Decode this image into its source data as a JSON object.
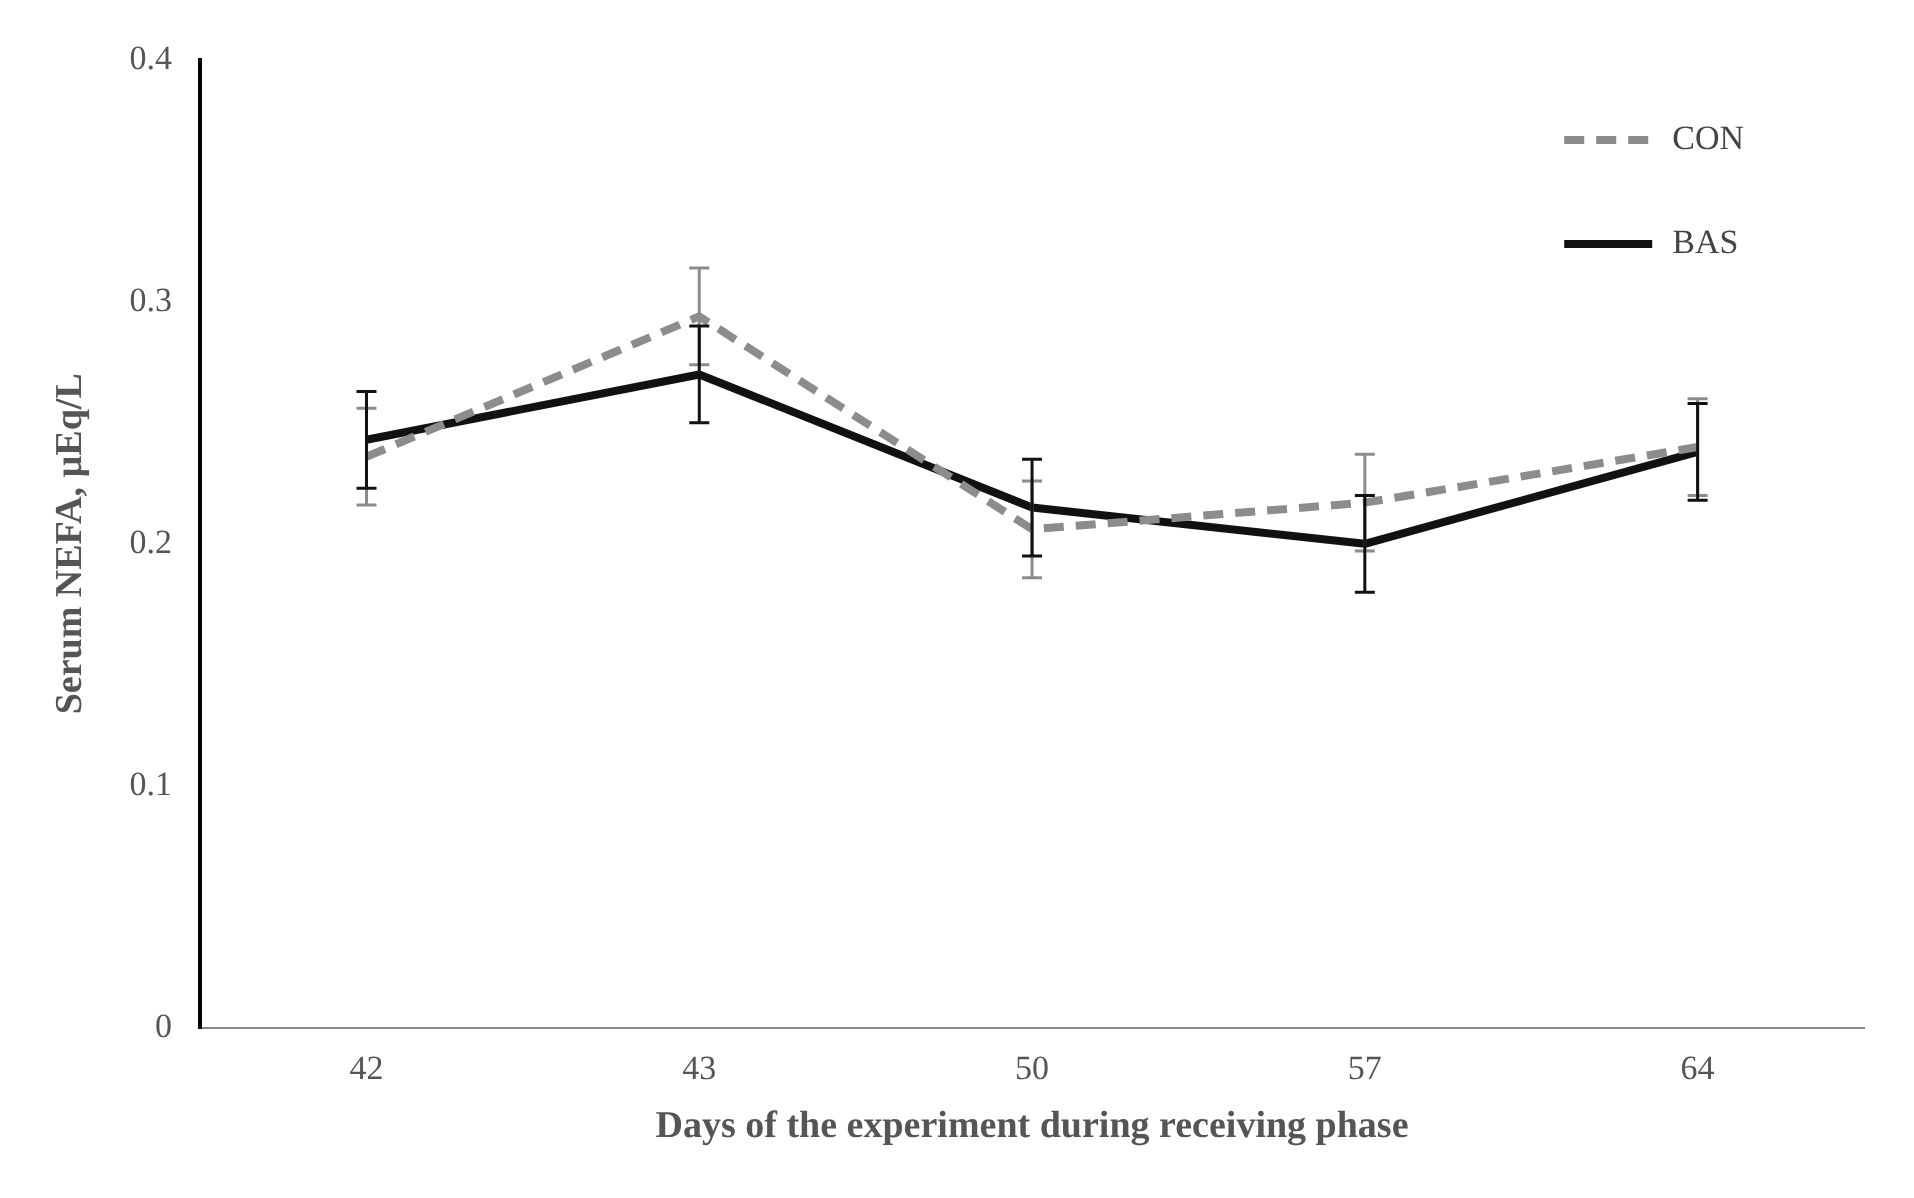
{
  "chart_data": {
    "type": "line",
    "xlabel": "Days of the experiment during receiving phase",
    "ylabel": "Serum NEFA, µEq/L",
    "categories": [
      "42",
      "43",
      "50",
      "57",
      "64"
    ],
    "series": [
      {
        "name": "CON",
        "color": "#8c8c8c",
        "line_style": "dashed",
        "values": [
          0.236,
          0.294,
          0.206,
          0.217,
          0.24
        ],
        "errors": [
          0.02,
          0.02,
          0.02,
          0.02,
          0.02
        ]
      },
      {
        "name": "BAS",
        "color": "#111111",
        "line_style": "solid",
        "values": [
          0.243,
          0.27,
          0.215,
          0.2,
          0.238
        ],
        "errors": [
          0.02,
          0.02,
          0.02,
          0.02,
          0.02
        ]
      }
    ],
    "ylim": [
      0,
      0.4
    ],
    "yticks": [
      0,
      0.1,
      0.2,
      0.3,
      0.4
    ],
    "grid": false,
    "legend": "top right",
    "marker": "none"
  }
}
